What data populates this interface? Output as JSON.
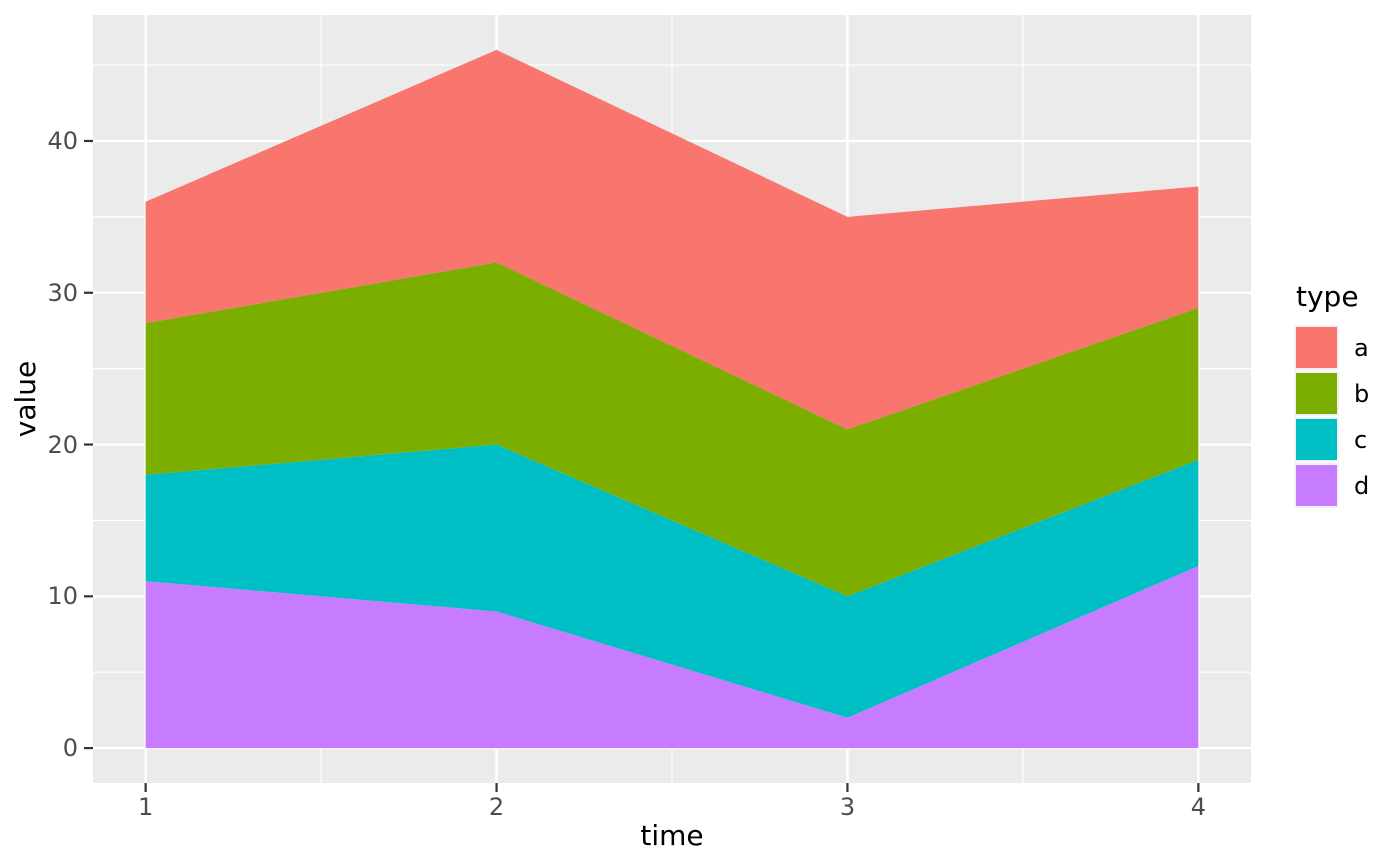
{
  "chart_data": {
    "type": "area",
    "stacked": true,
    "title": "",
    "xlabel": "time",
    "ylabel": "value",
    "x": [
      1,
      2,
      3,
      4
    ],
    "series": [
      {
        "name": "a",
        "color": "#F8766D",
        "values": [
          8,
          14,
          14,
          8
        ]
      },
      {
        "name": "b",
        "color": "#7CAE00",
        "values": [
          10,
          12,
          11,
          10
        ]
      },
      {
        "name": "c",
        "color": "#00BFC4",
        "values": [
          7,
          11,
          8,
          7
        ]
      },
      {
        "name": "d",
        "color": "#C77CFF",
        "values": [
          11,
          9,
          2,
          12
        ]
      }
    ],
    "stack_bottom_to_top": [
      "d",
      "c",
      "b",
      "a"
    ],
    "stacked_totals": [
      36,
      46,
      35,
      37
    ],
    "cumulative_tops": {
      "d": [
        11,
        9,
        2,
        12
      ],
      "c": [
        18,
        20,
        10,
        19
      ],
      "b": [
        28,
        32,
        21,
        29
      ],
      "a": [
        36,
        46,
        35,
        37
      ]
    },
    "xticks": [
      1,
      2,
      3,
      4
    ],
    "yticks": [
      0,
      10,
      20,
      30,
      40
    ],
    "xlim": [
      0.85,
      4.15
    ],
    "ylim": [
      -2.3,
      48.3
    ],
    "legend": {
      "title": "type",
      "position": "right",
      "entries": [
        "a",
        "b",
        "c",
        "d"
      ]
    },
    "grid": {
      "major_x": [
        1,
        2,
        3,
        4
      ],
      "major_y": [
        0,
        10,
        20,
        30,
        40
      ],
      "minor_x": [
        1.5,
        2.5,
        3.5
      ],
      "minor_y": [
        5,
        15,
        25,
        35,
        45
      ],
      "color": "#FFFFFF"
    },
    "colors": {
      "panel_bg": "#EBEBEB",
      "figure_bg": "#FFFFFF",
      "axis_text": "#4D4D4D",
      "axis_title": "#000000",
      "tick_marks": "#333333",
      "legend_key_bg": "#F2F2F2"
    }
  }
}
